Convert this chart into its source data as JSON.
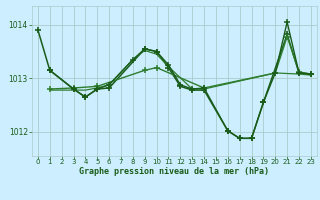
{
  "background_color": "#cceeff",
  "grid_color_major": "#aacccc",
  "grid_color_minor": "#bbdddd",
  "line_color_dark": "#1a5c1a",
  "xlabel": "Graphe pression niveau de la mer (hPa)",
  "ylim": [
    1011.55,
    1014.35
  ],
  "xlim": [
    -0.5,
    23.5
  ],
  "yticks": [
    1012,
    1013,
    1014
  ],
  "xticks": [
    0,
    1,
    2,
    3,
    4,
    5,
    6,
    7,
    8,
    9,
    10,
    11,
    12,
    13,
    14,
    15,
    16,
    17,
    18,
    19,
    20,
    21,
    22,
    23
  ],
  "series": [
    {
      "x": [
        0,
        1,
        3,
        4,
        5,
        6,
        9,
        10,
        11,
        12,
        13,
        14,
        16,
        17,
        18,
        19,
        21,
        22,
        23
      ],
      "y": [
        1013.9,
        1013.15,
        1012.8,
        1012.65,
        1012.8,
        1012.82,
        1013.55,
        1013.5,
        1013.2,
        1012.85,
        1012.78,
        1012.78,
        1012.02,
        1011.88,
        1011.88,
        1012.55,
        1013.82,
        1013.1,
        1013.08
      ],
      "color": "#1a5c1a",
      "linewidth": 1.1,
      "marker": "+",
      "markersize": 4,
      "markeredgewidth": 1.2
    },
    {
      "x": [
        1,
        3,
        5,
        9,
        10,
        14,
        20,
        21,
        22,
        23
      ],
      "y": [
        1012.8,
        1012.82,
        1012.85,
        1013.15,
        1013.2,
        1012.82,
        1013.1,
        1013.78,
        1013.12,
        1013.08
      ],
      "color": "#2e7d2e",
      "linewidth": 1.0,
      "marker": "+",
      "markersize": 4,
      "markeredgewidth": 1.1
    },
    {
      "x": [
        1,
        4,
        5,
        6,
        8,
        9,
        10,
        11,
        13,
        14,
        20,
        22,
        23
      ],
      "y": [
        1012.78,
        1012.78,
        1012.82,
        1012.88,
        1013.35,
        1013.52,
        1013.45,
        1013.22,
        1012.8,
        1012.8,
        1013.1,
        1013.08,
        1013.06
      ],
      "color": "#2e7d2e",
      "linewidth": 0.9,
      "marker": null,
      "markersize": 0,
      "markeredgewidth": 1.0
    },
    {
      "x": [
        1,
        3,
        4,
        5,
        6,
        8,
        9,
        10,
        11,
        12,
        13,
        14,
        16,
        17,
        18,
        19,
        20,
        21,
        22,
        23
      ],
      "y": [
        1013.15,
        1012.8,
        1012.65,
        1012.8,
        1012.88,
        1013.35,
        1013.55,
        1013.5,
        1013.25,
        1012.88,
        1012.8,
        1012.82,
        1012.02,
        1011.88,
        1011.88,
        1012.55,
        1013.1,
        1014.05,
        1013.1,
        1013.08
      ],
      "color": "#1a5c1a",
      "linewidth": 1.0,
      "marker": "+",
      "markersize": 4,
      "markeredgewidth": 1.1
    }
  ]
}
